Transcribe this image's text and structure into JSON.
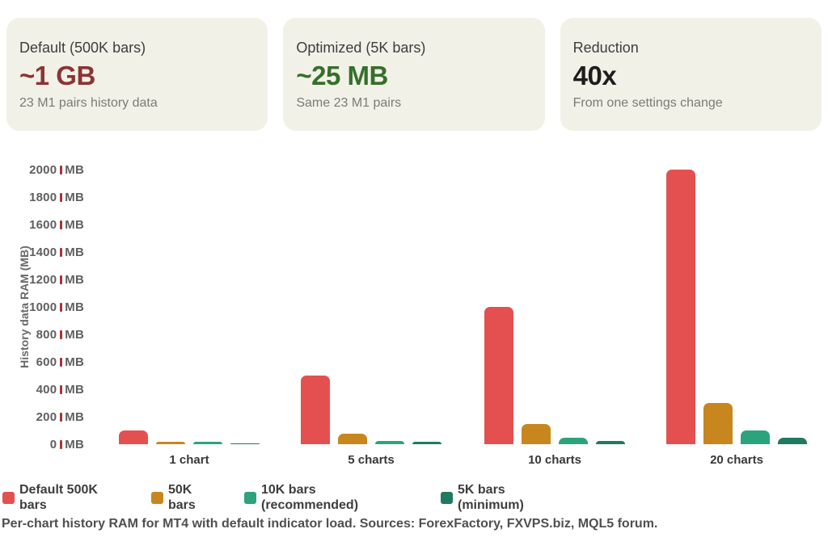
{
  "cards": [
    {
      "title": "Default (500K bars)",
      "value": "~1 GB",
      "value_color": "#8c3434",
      "subtitle": "23 M1 pairs history data"
    },
    {
      "title": "Optimized (5K bars)",
      "value": "~25 MB",
      "value_color": "#35702b",
      "subtitle": "Same 23 M1 pairs"
    },
    {
      "title": "Reduction",
      "value": "40x",
      "value_color": "#1e1e1e",
      "subtitle": "From one settings change"
    }
  ],
  "chart_data": {
    "type": "bar",
    "title": "",
    "xlabel": "",
    "ylabel": "History data RAM (MB)",
    "categories": [
      "1 chart",
      "5 charts",
      "10 charts",
      "20 charts"
    ],
    "series": [
      {
        "name": "Default 500K bars",
        "color": "#e45050",
        "values": [
          100,
          500,
          1000,
          2000
        ]
      },
      {
        "name": "50K bars",
        "color": "#c8861f",
        "values": [
          15,
          75,
          150,
          300
        ]
      },
      {
        "name": "10K bars (recommended)",
        "color": "#2ba47d",
        "values": [
          5,
          25,
          50,
          100
        ]
      },
      {
        "name": "5K bars (minimum)",
        "color": "#1f7a61",
        "values": [
          2.5,
          12.5,
          25,
          50
        ]
      }
    ],
    "ylim": [
      0,
      2000
    ],
    "ytick_step": 200,
    "ytick_unit": "MB",
    "grid": false,
    "legend_position": "bottom-left",
    "legend": [
      {
        "lines": [
          "Default 500K",
          "bars"
        ],
        "color": "#e45050"
      },
      {
        "lines": [
          "50K",
          "bars"
        ],
        "color": "#c8861f"
      },
      {
        "lines": [
          "10K bars",
          "(recommended)"
        ],
        "color": "#2ba47d"
      },
      {
        "lines": [
          "5K bars",
          "(minimum)"
        ],
        "color": "#1f7a61"
      }
    ]
  },
  "caption": "Per-chart history RAM for MT4 with default indicator load. Sources: ForexFactory, FXVPS.biz, MQL5 forum.",
  "theme": {
    "page_bg": "#ffffff",
    "card_bg": "#f2f1e7",
    "card_title_color": "#3d3d3d",
    "card_subtitle_color": "#7b7b76",
    "tick_label_color": "#5f5f5f",
    "tick_mark_color": "#a23636",
    "axis_title_color": "#6a6a6a",
    "x_label_color": "#383838",
    "legend_text_color": "#3d3d3d",
    "caption_color": "#4f4f4f"
  }
}
